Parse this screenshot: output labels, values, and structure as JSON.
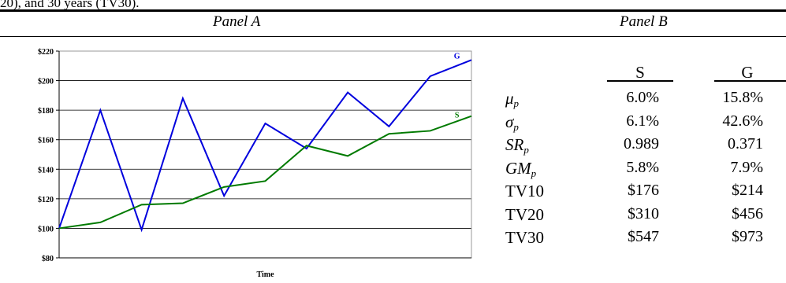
{
  "caption_fragment": "20), and 30 years (TV30).",
  "panel_a": {
    "title": "Panel A"
  },
  "panel_b": {
    "title": "Panel B",
    "columns": [
      "S",
      "G"
    ],
    "rows": [
      {
        "label": "μ",
        "sub": "p",
        "italic": true,
        "s": "6.0%",
        "g": "15.8%"
      },
      {
        "label": "σ",
        "sub": "p",
        "italic": true,
        "s": "6.1%",
        "g": "42.6%"
      },
      {
        "label": "SR",
        "sub": "p",
        "italic": true,
        "s": "0.989",
        "g": "0.371"
      },
      {
        "label": "GM",
        "sub": "p",
        "italic": true,
        "s": "5.8%",
        "g": "7.9%"
      },
      {
        "label": "TV10",
        "sub": "",
        "italic": false,
        "s": "$176",
        "g": "$214"
      },
      {
        "label": "TV20",
        "sub": "",
        "italic": false,
        "s": "$310",
        "g": "$456"
      },
      {
        "label": "TV30",
        "sub": "",
        "italic": false,
        "s": "$547",
        "g": "$973"
      }
    ]
  },
  "chart_data": {
    "type": "line",
    "title": "",
    "xlabel": "Time",
    "ylabel": "",
    "ylim": [
      80,
      220
    ],
    "yticks": [
      "$80",
      "$100",
      "$120",
      "$140",
      "$160",
      "$180",
      "$200",
      "$220"
    ],
    "ytick_values": [
      80,
      100,
      120,
      140,
      160,
      180,
      200,
      220
    ],
    "x": [
      0,
      1,
      2,
      3,
      4,
      5,
      6,
      7,
      8,
      9,
      10
    ],
    "grid": true,
    "series": [
      {
        "name": "G",
        "color": "#0000dd",
        "values": [
          100,
          180,
          99,
          188,
          122,
          171,
          154,
          192,
          169,
          203,
          214
        ]
      },
      {
        "name": "S",
        "color": "#007a00",
        "values": [
          100,
          104,
          116,
          117,
          128,
          132,
          156,
          149,
          164,
          166,
          176
        ]
      }
    ]
  }
}
